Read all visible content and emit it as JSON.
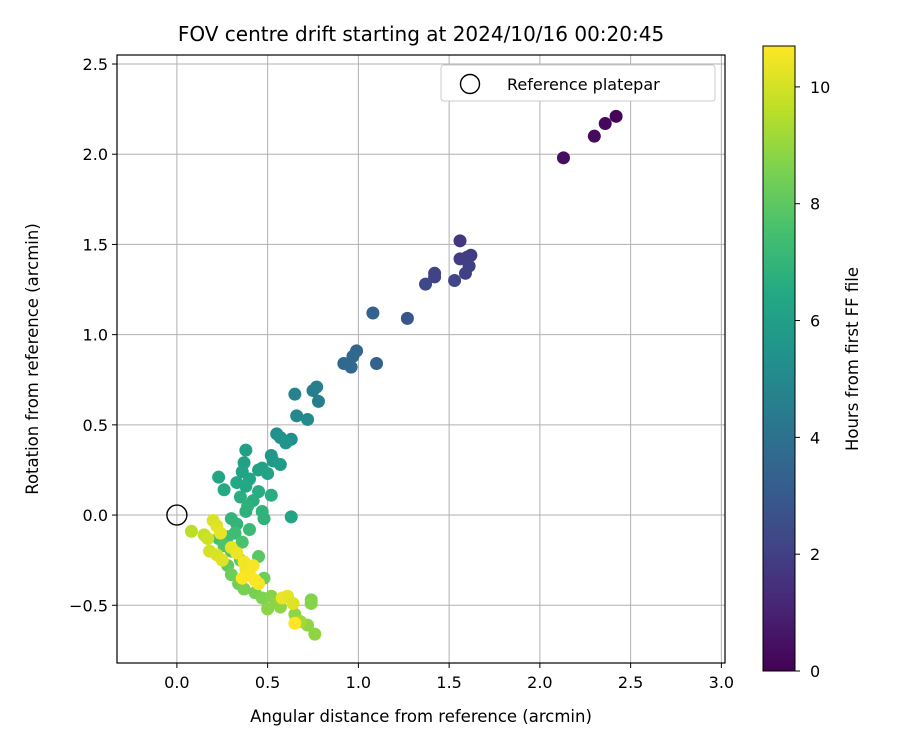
{
  "chart_data": {
    "type": "scatter",
    "title": "FOV centre drift starting at 2024/10/16 00:20:45",
    "xlabel": "Angular distance from reference (arcmin)",
    "ylabel": "Rotation from reference (arcmin)",
    "xlim": [
      -0.33,
      3.02
    ],
    "ylim": [
      -0.82,
      2.55
    ],
    "xticks": [
      "0.0",
      "0.5",
      "1.0",
      "1.5",
      "2.0",
      "2.5",
      "3.0"
    ],
    "yticks": [
      "−0.5",
      "0.0",
      "0.5",
      "1.0",
      "1.5",
      "2.0",
      "2.5"
    ],
    "grid": true,
    "legend": {
      "position": "top-right",
      "entries": [
        "Reference platepar"
      ]
    },
    "reference_point": {
      "x": 0.0,
      "y": 0.0
    },
    "colorbar": {
      "label": "Hours from first FF file",
      "min": 0,
      "max": 10.7,
      "colormap": "viridis",
      "ticks": [
        "0",
        "2",
        "4",
        "6",
        "8",
        "10"
      ]
    },
    "points": [
      {
        "x": 2.42,
        "y": 2.21,
        "c": 0.1
      },
      {
        "x": 2.36,
        "y": 2.17,
        "c": 0.2
      },
      {
        "x": 2.3,
        "y": 2.1,
        "c": 0.3
      },
      {
        "x": 2.13,
        "y": 1.98,
        "c": 0.4
      },
      {
        "x": 1.56,
        "y": 1.52,
        "c": 1.7
      },
      {
        "x": 1.62,
        "y": 1.44,
        "c": 1.8
      },
      {
        "x": 1.6,
        "y": 1.43,
        "c": 1.9
      },
      {
        "x": 1.56,
        "y": 1.42,
        "c": 1.9
      },
      {
        "x": 1.61,
        "y": 1.38,
        "c": 2.0
      },
      {
        "x": 1.59,
        "y": 1.34,
        "c": 2.0
      },
      {
        "x": 1.42,
        "y": 1.34,
        "c": 2.1
      },
      {
        "x": 1.42,
        "y": 1.32,
        "c": 2.1
      },
      {
        "x": 1.53,
        "y": 1.3,
        "c": 2.2
      },
      {
        "x": 1.37,
        "y": 1.28,
        "c": 2.3
      },
      {
        "x": 1.27,
        "y": 1.09,
        "c": 2.8
      },
      {
        "x": 1.08,
        "y": 1.12,
        "c": 3.3
      },
      {
        "x": 0.99,
        "y": 0.91,
        "c": 3.5
      },
      {
        "x": 0.97,
        "y": 0.88,
        "c": 3.6
      },
      {
        "x": 0.92,
        "y": 0.84,
        "c": 3.6
      },
      {
        "x": 0.96,
        "y": 0.82,
        "c": 3.7
      },
      {
        "x": 1.1,
        "y": 0.84,
        "c": 3.4
      },
      {
        "x": 0.77,
        "y": 0.71,
        "c": 4.5
      },
      {
        "x": 0.75,
        "y": 0.69,
        "c": 4.6
      },
      {
        "x": 0.65,
        "y": 0.67,
        "c": 4.7
      },
      {
        "x": 0.78,
        "y": 0.63,
        "c": 4.6
      },
      {
        "x": 0.66,
        "y": 0.55,
        "c": 5.0
      },
      {
        "x": 0.72,
        "y": 0.53,
        "c": 5.1
      },
      {
        "x": 0.55,
        "y": 0.45,
        "c": 5.3
      },
      {
        "x": 0.57,
        "y": 0.43,
        "c": 5.4
      },
      {
        "x": 0.63,
        "y": 0.42,
        "c": 5.3
      },
      {
        "x": 0.6,
        "y": 0.4,
        "c": 5.5
      },
      {
        "x": 0.38,
        "y": 0.36,
        "c": 6.0
      },
      {
        "x": 0.37,
        "y": 0.29,
        "c": 6.1
      },
      {
        "x": 0.52,
        "y": 0.33,
        "c": 5.6
      },
      {
        "x": 0.53,
        "y": 0.3,
        "c": 5.7
      },
      {
        "x": 0.57,
        "y": 0.28,
        "c": 5.8
      },
      {
        "x": 0.47,
        "y": 0.26,
        "c": 6.0
      },
      {
        "x": 0.36,
        "y": 0.24,
        "c": 6.2
      },
      {
        "x": 0.5,
        "y": 0.23,
        "c": 6.2
      },
      {
        "x": 0.45,
        "y": 0.25,
        "c": 6.1
      },
      {
        "x": 0.23,
        "y": 0.21,
        "c": 6.3
      },
      {
        "x": 0.4,
        "y": 0.2,
        "c": 6.3
      },
      {
        "x": 0.33,
        "y": 0.18,
        "c": 6.4
      },
      {
        "x": 0.38,
        "y": 0.16,
        "c": 6.4
      },
      {
        "x": 0.26,
        "y": 0.14,
        "c": 6.5
      },
      {
        "x": 0.45,
        "y": 0.13,
        "c": 6.6
      },
      {
        "x": 0.52,
        "y": 0.11,
        "c": 6.6
      },
      {
        "x": 0.35,
        "y": 0.1,
        "c": 6.7
      },
      {
        "x": 0.42,
        "y": 0.08,
        "c": 6.7
      },
      {
        "x": 0.39,
        "y": 0.05,
        "c": 6.8
      },
      {
        "x": 0.38,
        "y": 0.02,
        "c": 6.8
      },
      {
        "x": 0.47,
        "y": 0.02,
        "c": 6.9
      },
      {
        "x": 0.48,
        "y": -0.02,
        "c": 6.9
      },
      {
        "x": 0.63,
        "y": -0.01,
        "c": 6.3
      },
      {
        "x": 0.3,
        "y": -0.02,
        "c": 7.0
      },
      {
        "x": 0.33,
        "y": -0.05,
        "c": 7.0
      },
      {
        "x": 0.4,
        "y": -0.08,
        "c": 7.2
      },
      {
        "x": 0.32,
        "y": -0.1,
        "c": 7.3
      },
      {
        "x": 0.28,
        "y": -0.12,
        "c": 7.4
      },
      {
        "x": 0.23,
        "y": -0.13,
        "c": 7.5
      },
      {
        "x": 0.36,
        "y": -0.15,
        "c": 7.6
      },
      {
        "x": 0.26,
        "y": -0.17,
        "c": 7.7
      },
      {
        "x": 0.3,
        "y": -0.2,
        "c": 7.9
      },
      {
        "x": 0.45,
        "y": -0.23,
        "c": 7.9
      },
      {
        "x": 0.35,
        "y": -0.25,
        "c": 8.0
      },
      {
        "x": 0.28,
        "y": -0.28,
        "c": 8.1
      },
      {
        "x": 0.4,
        "y": -0.3,
        "c": 8.2
      },
      {
        "x": 0.3,
        "y": -0.33,
        "c": 8.3
      },
      {
        "x": 0.48,
        "y": -0.35,
        "c": 8.3
      },
      {
        "x": 0.34,
        "y": -0.38,
        "c": 8.4
      },
      {
        "x": 0.37,
        "y": -0.41,
        "c": 8.5
      },
      {
        "x": 0.43,
        "y": -0.43,
        "c": 8.5
      },
      {
        "x": 0.47,
        "y": -0.46,
        "c": 8.6
      },
      {
        "x": 0.52,
        "y": -0.45,
        "c": 8.7
      },
      {
        "x": 0.55,
        "y": -0.48,
        "c": 8.8
      },
      {
        "x": 0.5,
        "y": -0.52,
        "c": 8.8
      },
      {
        "x": 0.57,
        "y": -0.51,
        "c": 8.9
      },
      {
        "x": 0.65,
        "y": -0.55,
        "c": 8.9
      },
      {
        "x": 0.74,
        "y": -0.47,
        "c": 8.6
      },
      {
        "x": 0.74,
        "y": -0.49,
        "c": 8.7
      },
      {
        "x": 0.72,
        "y": -0.61,
        "c": 8.9
      },
      {
        "x": 0.76,
        "y": -0.66,
        "c": 8.9
      },
      {
        "x": 0.68,
        "y": -0.59,
        "c": 9.2
      },
      {
        "x": 0.08,
        "y": -0.09,
        "c": 9.6
      },
      {
        "x": 0.15,
        "y": -0.11,
        "c": 9.8
      },
      {
        "x": 0.17,
        "y": -0.13,
        "c": 9.9
      },
      {
        "x": 0.2,
        "y": -0.03,
        "c": 10.1
      },
      {
        "x": 0.22,
        "y": -0.06,
        "c": 10.2
      },
      {
        "x": 0.24,
        "y": -0.1,
        "c": 10.3
      },
      {
        "x": 0.18,
        "y": -0.2,
        "c": 10.0
      },
      {
        "x": 0.22,
        "y": -0.22,
        "c": 10.1
      },
      {
        "x": 0.25,
        "y": -0.25,
        "c": 10.2
      },
      {
        "x": 0.3,
        "y": -0.18,
        "c": 10.3
      },
      {
        "x": 0.33,
        "y": -0.21,
        "c": 10.4
      },
      {
        "x": 0.37,
        "y": -0.26,
        "c": 10.5
      },
      {
        "x": 0.38,
        "y": -0.3,
        "c": 10.5
      },
      {
        "x": 0.4,
        "y": -0.33,
        "c": 10.6
      },
      {
        "x": 0.42,
        "y": -0.28,
        "c": 10.6
      },
      {
        "x": 0.36,
        "y": -0.35,
        "c": 10.7
      },
      {
        "x": 0.45,
        "y": -0.38,
        "c": 10.6
      },
      {
        "x": 0.43,
        "y": -0.36,
        "c": 10.7
      },
      {
        "x": 0.58,
        "y": -0.46,
        "c": 10.4
      },
      {
        "x": 0.61,
        "y": -0.45,
        "c": 10.3
      },
      {
        "x": 0.64,
        "y": -0.49,
        "c": 10.2
      },
      {
        "x": 0.65,
        "y": -0.6,
        "c": 10.7
      }
    ]
  }
}
